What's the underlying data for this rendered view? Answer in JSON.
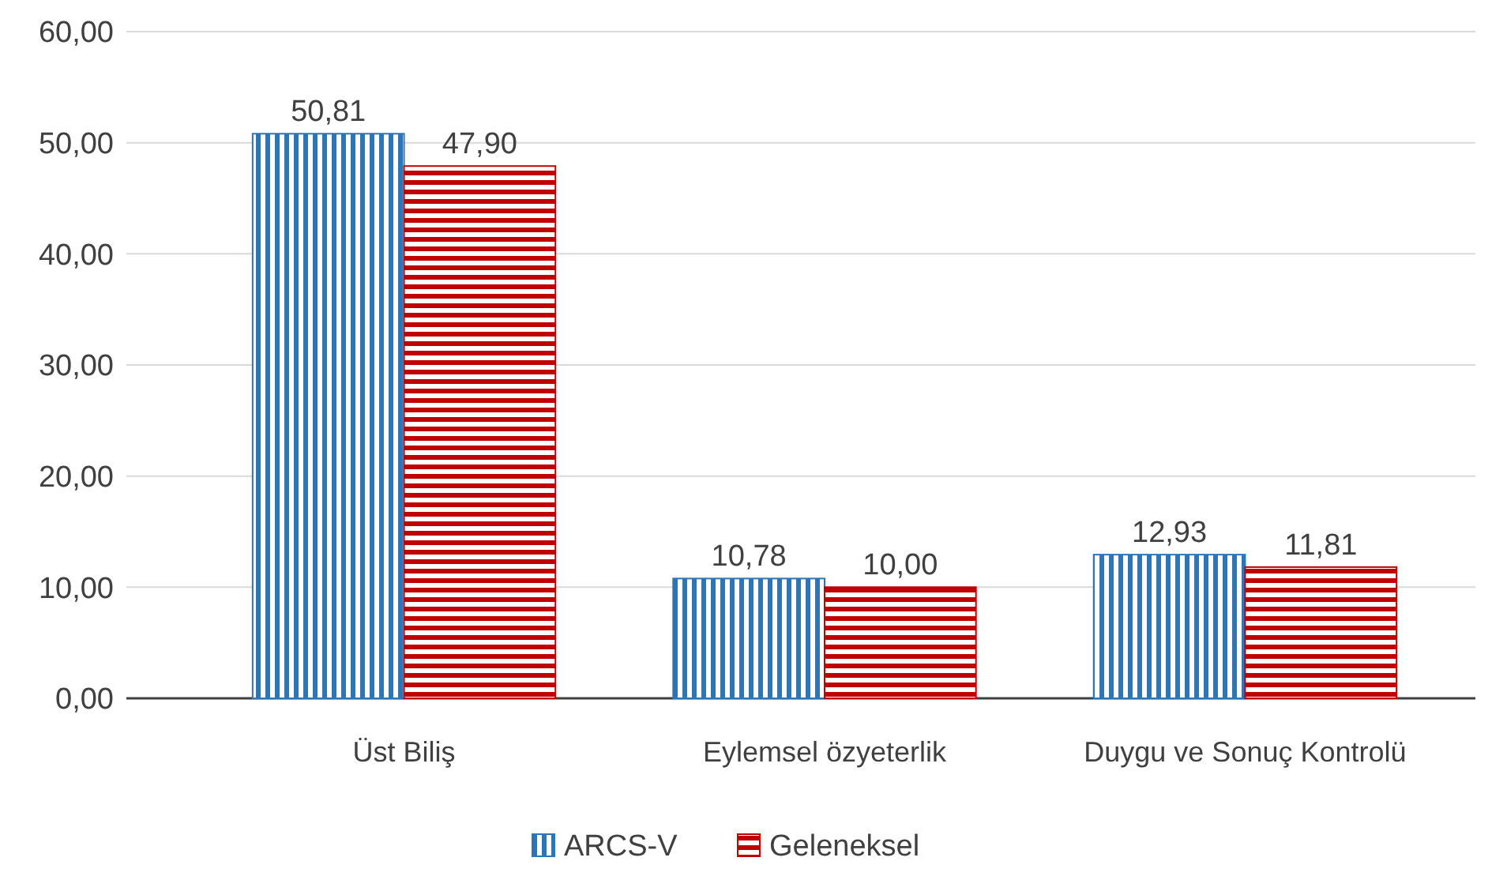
{
  "chart_data": {
    "type": "bar",
    "categories": [
      "Üst Biliş",
      "Eylemsel özyeterlik",
      "Duygu ve Sonuç Kontrolü"
    ],
    "series": [
      {
        "name": "ARCS-V",
        "color": "#2e75b6",
        "values": [
          50.81,
          10.78,
          12.93
        ],
        "value_labels": [
          "50,81",
          "10,78",
          "12,93"
        ]
      },
      {
        "name": "Geleneksel",
        "color": "#c00000",
        "values": [
          47.9,
          10.0,
          11.81
        ],
        "value_labels": [
          "47,90",
          "10,00",
          "11,81"
        ]
      }
    ],
    "ylim": [
      0,
      60
    ],
    "yticks": [
      {
        "value": 0,
        "label": "0,00"
      },
      {
        "value": 10,
        "label": "10,00"
      },
      {
        "value": 20,
        "label": "20,00"
      },
      {
        "value": 30,
        "label": "30,00"
      },
      {
        "value": 40,
        "label": "40,00"
      },
      {
        "value": 50,
        "label": "50,00"
      },
      {
        "value": 60,
        "label": "60,00"
      }
    ],
    "grid": "y",
    "legend": "bottom"
  }
}
